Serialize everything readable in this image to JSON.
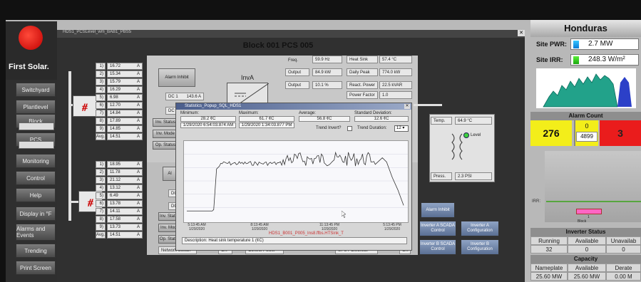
{
  "app": {
    "logo": "First Solar.",
    "window_title": "HDS1_PCSLevel_wm_BAB1_PBS5"
  },
  "nav": [
    {
      "label": "Switchyard"
    },
    {
      "label": "Plantlevel"
    },
    {
      "label": "Block"
    },
    {
      "label": "PCS"
    },
    {
      "label": "Monitoring"
    },
    {
      "label": "Control"
    },
    {
      "label": "Help"
    },
    {
      "label": "Display in °F"
    },
    {
      "label": "Alarms and Events"
    },
    {
      "label": "Trending"
    },
    {
      "label": "Print Screen"
    }
  ],
  "main": {
    "title": "Block 001 PCS 005",
    "inverter_label": "InvA",
    "alarm_inhibit": "Alarm Inhibit",
    "dc1_label": "DC 1",
    "dc1_value": "143.6 A",
    "dc_label": "DC",
    "inv_status": "Inv. Status",
    "inv_mode": "Inv. Mode",
    "op_status": "Op. Status",
    "network_switch": "Network Switch",
    "control_power": "Control Power",
    "ups_pcmonitor": "UPS PCMonitor",
    "ok": "OK",
    "freq_label": "Freq.",
    "freq_value": "59.9 Hz",
    "output_label": "Output",
    "output_kw": "84.9 kW",
    "output_pct": "10.1 %",
    "heatsink_label": "Heat Sink",
    "heatsink_value": "57.4 °C",
    "daily_peak_label": "Daily Peak",
    "daily_peak_value": "774.0 kW",
    "react_label": "React. Power",
    "react_value": "22.5 kVAR",
    "pf_label": "Power Factor",
    "pf_value": "1.0",
    "temp_label": "Temp.",
    "temp_value": "64.9 °C",
    "level_label": "Level",
    "press_label": "Press.",
    "press_value": "2.3 PSI",
    "alarm_inhibit_b": "Alarm Inhibit",
    "inv_a_scada": "Inverter A SCADA Control",
    "inv_a_config": "Inverter A Configuration",
    "inv_b_scada": "Inverter B SCADA Control",
    "inv_b_config": "Inverter B Configuration",
    "unit": "A",
    "currents_a": [
      {
        "n": "1)",
        "v": "16.72"
      },
      {
        "n": "2)",
        "v": "15.34"
      },
      {
        "n": "3)",
        "v": "15.79"
      },
      {
        "n": "4)",
        "v": "16.29"
      },
      {
        "n": "5)",
        "v": "6.98"
      },
      {
        "n": "6)",
        "v": "12.70"
      },
      {
        "n": "7)",
        "v": "14.84"
      },
      {
        "n": "8)",
        "v": "17.89"
      },
      {
        "n": "9)",
        "v": "14.85"
      },
      {
        "n": "Avg.",
        "v": "14.51"
      }
    ],
    "currents_b": [
      {
        "n": "1)",
        "v": "18.95"
      },
      {
        "n": "2)",
        "v": "11.78"
      },
      {
        "n": "3)",
        "v": "21.12"
      },
      {
        "n": "4)",
        "v": "13.12"
      },
      {
        "n": "5)",
        "v": "6.49"
      },
      {
        "n": "6)",
        "v": "13.78"
      },
      {
        "n": "7)",
        "v": "14.11"
      },
      {
        "n": "8)",
        "v": "17.58"
      },
      {
        "n": "9)",
        "v": "13.73"
      },
      {
        "n": "Avg.",
        "v": "14.51"
      }
    ]
  },
  "popup": {
    "title": "Statistics_Popup_SQL_HDS1",
    "minimum_label": "Minimum:",
    "minimum_value": "28.2 ¢C",
    "minimum_time": "1/29/2020 6:54:03.874 AM",
    "maximum_label": "Maximum:",
    "maximum_value": "61.7 ¢C",
    "maximum_time": "1/29/2020 1:34:03.877 PM",
    "average_label": "Average:",
    "average_value": "56.8 ¢C",
    "stddev_label": "Standard Deviation:",
    "stddev_value": "12.6 ¢C",
    "trend_invert_label": "Trend Invert?",
    "trend_duration_label": "Trend Duration:",
    "trend_duration_value": "12",
    "series_label": "HDS1_B001_P005_Ins8.ffbs.HTSink_T",
    "description": "Description: Heat sink temperature 1 (¢C)",
    "y_top": "65",
    "y_bottom": "25",
    "x_ticks": [
      {
        "t": "5:13:45 AM",
        "d": "1/29/2020"
      },
      {
        "t": "8:13:45 AM",
        "d": "1/29/2020"
      },
      {
        "t": "11:13:45 PM",
        "d": "1/29/2020"
      },
      {
        "t": "5:13:45 PM",
        "d": "1/29/2020"
      }
    ]
  },
  "site": {
    "name": "Honduras",
    "pwr_label": "Site PWR:",
    "pwr_value": "2.7 MW",
    "irr_label": "Site IRR:",
    "irr_value": "248.3 W/m²",
    "alarm_count_label": "Alarm Count",
    "alarm_yellow": "276",
    "alarm_mid_top": "0",
    "alarm_mid_bottom": "4899",
    "alarm_red": "3",
    "irr_label_small": "IRR:",
    "block_label": "Block",
    "block_num": "1",
    "inverter_status_label": "Inverter Status",
    "running_label": "Running",
    "available_label": "Available",
    "unavailable_label": "Unavailab",
    "running_value": "32",
    "available_value": "0",
    "unavailable_value": "0",
    "capacity_label": "Capacity",
    "nameplate_label": "Nameplate",
    "cap_available_label": "Available",
    "derate_label": "Derate",
    "nameplate_value": "25.60 MW",
    "cap_available_value": "25.60 MW",
    "derate_value": "0.00 M"
  },
  "colors": {
    "alarm_yellow": "#f3ee1a",
    "alarm_red": "#ea1c1c",
    "block_bar": "#ff66c4",
    "trend_line": "#333"
  }
}
